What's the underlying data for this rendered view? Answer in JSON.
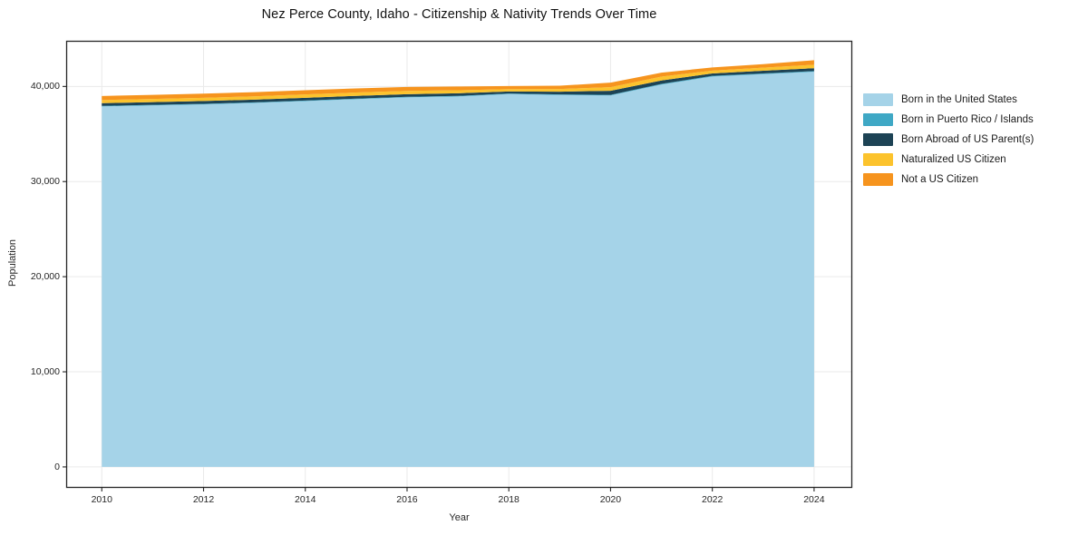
{
  "title": "Nez Perce County, Idaho - Citizenship & Nativity Trends Over Time",
  "chart_data": {
    "type": "area",
    "stacked": true,
    "title": "Nez Perce County, Idaho - Citizenship & Nativity Trends Over Time",
    "xlabel": "Year",
    "ylabel": "Population",
    "x": [
      2010,
      2011,
      2012,
      2013,
      2014,
      2015,
      2016,
      2017,
      2018,
      2019,
      2020,
      2021,
      2022,
      2023,
      2024
    ],
    "series": [
      {
        "name": "Born in the United States",
        "color": "#a5d3e8",
        "values": [
          37900,
          38010,
          38120,
          38270,
          38460,
          38660,
          38850,
          38950,
          39200,
          39100,
          39050,
          40200,
          41050,
          41300,
          41550
        ]
      },
      {
        "name": "Born in Puerto Rico / Islands",
        "color": "#3fa8c5",
        "values": [
          60,
          60,
          60,
          60,
          60,
          60,
          60,
          60,
          60,
          60,
          70,
          70,
          70,
          70,
          70
        ]
      },
      {
        "name": "Born Abroad of US Parent(s)",
        "color": "#1d4355",
        "values": [
          280,
          280,
          290,
          290,
          290,
          290,
          280,
          270,
          210,
          290,
          430,
          360,
          250,
          280,
          300
        ]
      },
      {
        "name": "Naturalized US Citizen",
        "color": "#fcc32d",
        "values": [
          330,
          340,
          340,
          340,
          350,
          350,
          340,
          320,
          250,
          280,
          380,
          400,
          300,
          330,
          360
        ]
      },
      {
        "name": "Not a US Citizen",
        "color": "#f6941e",
        "values": [
          430,
          430,
          440,
          440,
          440,
          440,
          420,
          400,
          330,
          350,
          470,
          420,
          330,
          370,
          480
        ]
      }
    ],
    "x_ticks": [
      2010,
      2012,
      2014,
      2016,
      2018,
      2020,
      2022,
      2024
    ],
    "x_tick_labels": [
      "2010",
      "2012",
      "2014",
      "2016",
      "2018",
      "2020",
      "2022",
      "2024"
    ],
    "y_ticks": [
      0,
      10000,
      20000,
      30000,
      40000
    ],
    "y_tick_labels": [
      "0",
      "10,000",
      "20,000",
      "30,000",
      "40,000"
    ],
    "xlim": [
      2009.3,
      2024.75
    ],
    "ylim": [
      -2200,
      44800
    ],
    "grid": true,
    "grid_color": "#eaeaea",
    "spine_color": "#262626",
    "legend_position": "right-outside"
  }
}
